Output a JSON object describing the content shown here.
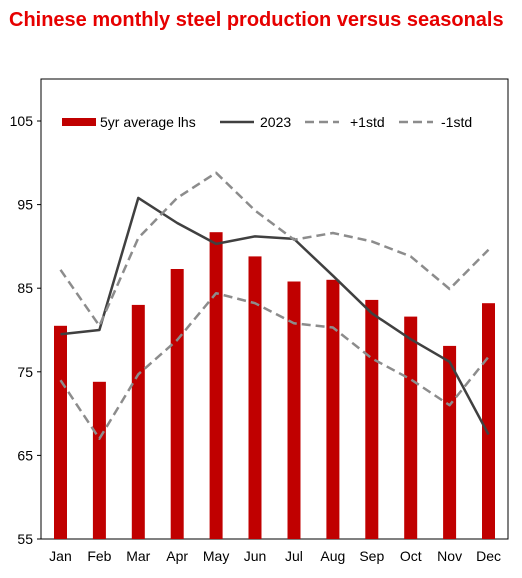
{
  "title": "Chinese monthly steel production versus seasonals",
  "colors": {
    "bar": "#c00000",
    "line2023": "#404040",
    "band": "#8c8c8c",
    "title": "#e60000"
  },
  "legend": {
    "position": "top",
    "items": [
      {
        "label": "5yr average lhs",
        "kind": "bar"
      },
      {
        "label": "2023",
        "kind": "solid"
      },
      {
        "label": "+1std",
        "kind": "dashed"
      },
      {
        "label": "-1std",
        "kind": "dashed"
      }
    ]
  },
  "chart_data": {
    "type": "bar+line",
    "title": "Chinese monthly steel production versus seasonals",
    "categories": [
      "Jan",
      "Feb",
      "Mar",
      "Apr",
      "May",
      "Jun",
      "Jul",
      "Aug",
      "Sep",
      "Oct",
      "Nov",
      "Dec"
    ],
    "ylim": [
      55,
      105
    ],
    "yticks": [
      55,
      65,
      75,
      85,
      95,
      105
    ],
    "grid": false,
    "series": [
      {
        "name": "5yr average lhs",
        "type": "bar",
        "values": [
          80.5,
          73.8,
          83.0,
          87.3,
          91.7,
          88.8,
          85.8,
          86.0,
          83.6,
          81.6,
          78.1,
          83.2
        ]
      },
      {
        "name": "2023",
        "type": "line",
        "style": "solid",
        "values": [
          79.5,
          80.0,
          95.8,
          92.8,
          90.3,
          91.2,
          90.9,
          86.5,
          82.0,
          78.9,
          76.2,
          67.5
        ]
      },
      {
        "name": "+1std",
        "type": "line",
        "style": "dashed",
        "values": [
          87.2,
          80.5,
          91.0,
          95.8,
          98.8,
          94.3,
          90.8,
          91.6,
          90.6,
          88.8,
          84.9,
          89.6
        ]
      },
      {
        "name": "-1std",
        "type": "line",
        "style": "dashed",
        "values": [
          74.0,
          67.0,
          74.7,
          78.8,
          84.4,
          83.2,
          80.8,
          80.3,
          76.6,
          74.1,
          71.0,
          76.8
        ]
      }
    ]
  }
}
